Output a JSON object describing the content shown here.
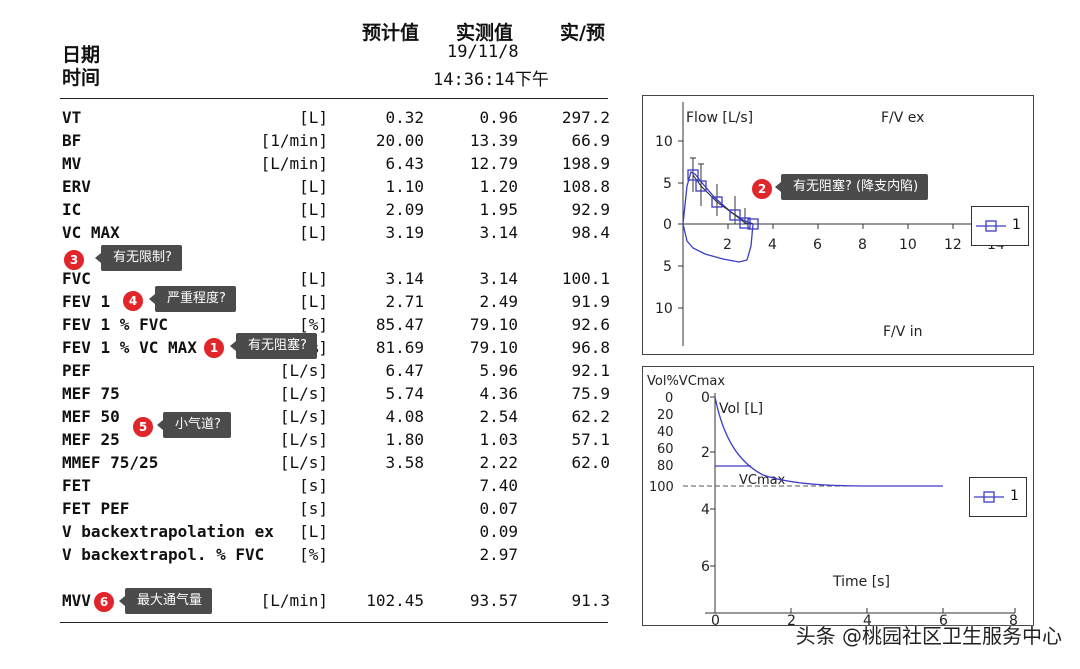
{
  "header": {
    "col_pred": "预计值",
    "col_meas": "实测值",
    "col_ratio": "实/预",
    "date_label": "日期",
    "time_label": "时间",
    "date_value": "19/11/8",
    "time_value": "14:36:14下午"
  },
  "rows": [
    {
      "label": "VT",
      "unit": "[L]",
      "pred": "0.32",
      "meas": "0.96",
      "ratio": "297.2"
    },
    {
      "label": "BF",
      "unit": "[1/min]",
      "pred": "20.00",
      "meas": "13.39",
      "ratio": "66.9"
    },
    {
      "label": "MV",
      "unit": "[L/min]",
      "pred": "6.43",
      "meas": "12.79",
      "ratio": "198.9"
    },
    {
      "label": "ERV",
      "unit": "[L]",
      "pred": "1.10",
      "meas": "1.20",
      "ratio": "108.8"
    },
    {
      "label": "IC",
      "unit": "[L]",
      "pred": "2.09",
      "meas": "1.95",
      "ratio": "92.9"
    },
    {
      "label": "VC MAX",
      "unit": "[L]",
      "pred": "3.19",
      "meas": "3.14",
      "ratio": "98.4"
    },
    {
      "label": "FVC",
      "unit": "[L]",
      "pred": "3.14",
      "meas": "3.14",
      "ratio": "100.1"
    },
    {
      "label": "FEV 1",
      "unit": "[L]",
      "pred": "2.71",
      "meas": "2.49",
      "ratio": "91.9"
    },
    {
      "label": "FEV 1 % FVC",
      "unit": "[%]",
      "pred": "85.47",
      "meas": "79.10",
      "ratio": "92.6"
    },
    {
      "label": "FEV 1 % VC MAX",
      "unit": "[%]",
      "pred": "81.69",
      "meas": "79.10",
      "ratio": "96.8"
    },
    {
      "label": "PEF",
      "unit": "[L/s]",
      "pred": "6.47",
      "meas": "5.96",
      "ratio": "92.1"
    },
    {
      "label": "MEF 75",
      "unit": "[L/s]",
      "pred": "5.74",
      "meas": "4.36",
      "ratio": "75.9"
    },
    {
      "label": "MEF 50",
      "unit": "[L/s]",
      "pred": "4.08",
      "meas": "2.54",
      "ratio": "62.2"
    },
    {
      "label": "MEF 25",
      "unit": "[L/s]",
      "pred": "1.80",
      "meas": "1.03",
      "ratio": "57.1"
    },
    {
      "label": "MMEF 75/25",
      "unit": "[L/s]",
      "pred": "3.58",
      "meas": "2.22",
      "ratio": "62.0"
    },
    {
      "label": "FET",
      "unit": "[s]",
      "pred": "",
      "meas": "7.40",
      "ratio": ""
    },
    {
      "label": "FET PEF",
      "unit": "[s]",
      "pred": "",
      "meas": "0.07",
      "ratio": ""
    },
    {
      "label": "V backextrapolation ex",
      "unit": "[L]",
      "pred": "",
      "meas": "0.09",
      "ratio": ""
    },
    {
      "label": "V backextrapol. % FVC",
      "unit": "[%]",
      "pred": "",
      "meas": "2.97",
      "ratio": ""
    }
  ],
  "mvv_row": {
    "label": "MVV",
    "unit": "[L/min]",
    "pred": "102.45",
    "meas": "93.57",
    "ratio": "91.3"
  },
  "callouts": [
    {
      "num": "1",
      "text": "有无阻塞?"
    },
    {
      "num": "2",
      "text": "有无阻塞?  (降支内陷)"
    },
    {
      "num": "3",
      "text": "有无限制?"
    },
    {
      "num": "4",
      "text": "严重程度?"
    },
    {
      "num": "5",
      "text": "小气道?"
    },
    {
      "num": "6",
      "text": "最大通气量"
    }
  ],
  "fv_chart": {
    "ylabel": "Flow [L/s]",
    "top_label": "F/V ex",
    "bottom_label": "F/V in",
    "x_ticks": [
      "2",
      "4",
      "6",
      "8",
      "10",
      "12",
      "14"
    ],
    "y_ticks_up": [
      "10",
      "5",
      "0"
    ],
    "y_ticks_down": [
      "5",
      "10"
    ],
    "legend": "1"
  },
  "vt_chart": {
    "title": "Vol%VCmax",
    "ylabel": "Vol [L]",
    "xlabel": "Time [s]",
    "pct_ticks": [
      "0",
      "20",
      "40",
      "60",
      "80",
      "100"
    ],
    "vol_ticks": [
      "0",
      "2",
      "4",
      "6"
    ],
    "x_ticks": [
      "0",
      "2",
      "4",
      "6",
      "8"
    ],
    "vcmax_label": "VCmax",
    "legend": "1"
  },
  "watermark": "头条 @桃园社区卫生服务中心"
}
